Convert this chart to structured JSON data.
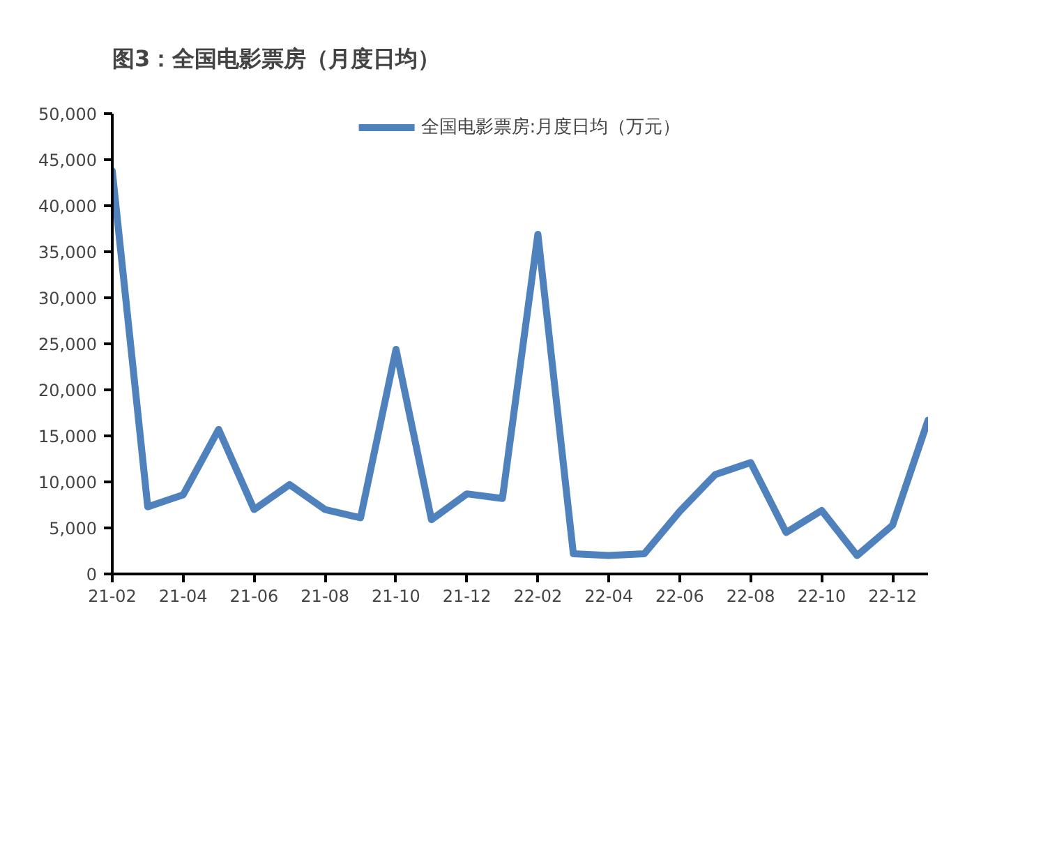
{
  "chart_data": {
    "type": "line",
    "title": "图3：全国电影票房（月度日均）",
    "categories": [
      "21-02",
      null,
      "21-04",
      null,
      "21-06",
      null,
      "21-08",
      null,
      "21-10",
      null,
      "21-12",
      null,
      "22-02",
      null,
      "22-04",
      null,
      "22-06",
      null,
      "22-08",
      null,
      "22-10",
      null,
      "22-12",
      null
    ],
    "series": [
      {
        "name": "全国电影票房:月度日均（万元）",
        "color": "#4f81bd",
        "values": [
          43800,
          7300,
          8600,
          15700,
          7000,
          9700,
          7000,
          6100,
          24400,
          5900,
          8700,
          8200,
          36900,
          2200,
          2000,
          2200,
          6800,
          10800,
          12100,
          4500,
          6900,
          2000,
          5300,
          16700
        ]
      }
    ],
    "ylim": [
      0,
      50000
    ],
    "yticks": [
      {
        "value": 0,
        "label": "0"
      },
      {
        "value": 5000,
        "label": "5,000"
      },
      {
        "value": 10000,
        "label": "10,000"
      },
      {
        "value": 15000,
        "label": "15,000"
      },
      {
        "value": 20000,
        "label": "20,000"
      },
      {
        "value": 25000,
        "label": "25,000"
      },
      {
        "value": 30000,
        "label": "30,000"
      },
      {
        "value": 35000,
        "label": "35,000"
      },
      {
        "value": 40000,
        "label": "40,000"
      },
      {
        "value": 45000,
        "label": "45,000"
      },
      {
        "value": 50000,
        "label": "50,000"
      }
    ],
    "grid": false,
    "legend": "top",
    "marker": "none",
    "line_style": "solid"
  }
}
